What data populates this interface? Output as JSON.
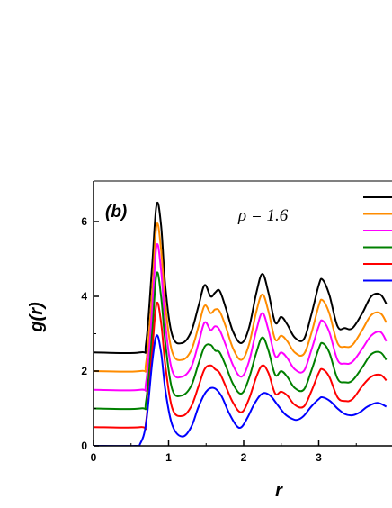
{
  "chart_data": {
    "type": "line",
    "panel_label": "(b)",
    "annotation": "ρ = 1.6",
    "xlabel": "r",
    "ylabel": "g(r)",
    "xlim": [
      0,
      3.9
    ],
    "ylim": [
      0,
      7.0
    ],
    "xticks": [
      "0",
      "1",
      "2",
      "3"
    ],
    "yticks": [
      "0",
      "2",
      "4",
      "6"
    ],
    "grid": false,
    "legend": "top-right (entries cropped)",
    "series": [
      {
        "color": "#000000",
        "offset": 2.5,
        "x": [
          0.0,
          0.62,
          0.7,
          0.78,
          0.84,
          0.9,
          0.96,
          1.05,
          1.18,
          1.3,
          1.4,
          1.48,
          1.56,
          1.62,
          1.68,
          1.76,
          1.86,
          1.97,
          2.07,
          2.17,
          2.25,
          2.33,
          2.42,
          2.5,
          2.58,
          2.68,
          2.8,
          2.9,
          3.0,
          3.05,
          3.14,
          3.25,
          3.35,
          3.45,
          3.58,
          3.7,
          3.82,
          3.9
        ],
        "y": [
          2.5,
          2.5,
          2.75,
          4.8,
          6.45,
          5.9,
          4.2,
          2.95,
          2.75,
          3.05,
          3.75,
          4.3,
          4.0,
          4.1,
          4.15,
          3.7,
          3.05,
          2.75,
          3.15,
          4.1,
          4.6,
          4.1,
          3.3,
          3.45,
          3.25,
          2.9,
          2.85,
          3.5,
          4.3,
          4.45,
          4.05,
          3.2,
          3.15,
          3.15,
          3.55,
          4.0,
          4.05,
          3.8
        ]
      },
      {
        "color": "#ff8c00",
        "offset": 2.0,
        "x": [
          0.0,
          0.62,
          0.7,
          0.78,
          0.84,
          0.9,
          0.96,
          1.05,
          1.18,
          1.3,
          1.4,
          1.48,
          1.56,
          1.62,
          1.68,
          1.76,
          1.86,
          1.97,
          2.07,
          2.17,
          2.25,
          2.33,
          2.42,
          2.5,
          2.58,
          2.68,
          2.8,
          2.9,
          3.0,
          3.05,
          3.14,
          3.25,
          3.35,
          3.45,
          3.58,
          3.7,
          3.82,
          3.9
        ],
        "y": [
          2.0,
          2.0,
          2.22,
          4.1,
          5.9,
          5.25,
          3.7,
          2.5,
          2.3,
          2.55,
          3.2,
          3.75,
          3.55,
          3.65,
          3.6,
          3.2,
          2.6,
          2.3,
          2.7,
          3.6,
          4.05,
          3.6,
          2.85,
          2.95,
          2.8,
          2.5,
          2.45,
          3.0,
          3.75,
          3.9,
          3.55,
          2.75,
          2.65,
          2.7,
          3.1,
          3.5,
          3.55,
          3.3
        ]
      },
      {
        "color": "#ff00ff",
        "offset": 1.5,
        "x": [
          0.0,
          0.62,
          0.7,
          0.78,
          0.84,
          0.9,
          0.96,
          1.05,
          1.18,
          1.3,
          1.4,
          1.48,
          1.56,
          1.62,
          1.68,
          1.76,
          1.86,
          1.97,
          2.07,
          2.17,
          2.25,
          2.33,
          2.42,
          2.5,
          2.58,
          2.68,
          2.8,
          2.9,
          3.0,
          3.05,
          3.14,
          3.25,
          3.35,
          3.45,
          3.58,
          3.7,
          3.82,
          3.9
        ],
        "y": [
          1.5,
          1.5,
          1.7,
          3.6,
          5.35,
          4.7,
          3.2,
          2.0,
          1.85,
          2.1,
          2.75,
          3.3,
          3.1,
          3.2,
          3.1,
          2.7,
          2.15,
          1.85,
          2.25,
          3.1,
          3.55,
          3.1,
          2.4,
          2.5,
          2.35,
          2.05,
          2.0,
          2.55,
          3.2,
          3.35,
          3.05,
          2.3,
          2.2,
          2.25,
          2.6,
          2.95,
          3.05,
          2.8
        ]
      },
      {
        "color": "#008000",
        "offset": 1.0,
        "x": [
          0.0,
          0.62,
          0.7,
          0.78,
          0.84,
          0.9,
          0.96,
          1.05,
          1.18,
          1.3,
          1.4,
          1.48,
          1.56,
          1.62,
          1.68,
          1.76,
          1.86,
          1.97,
          2.07,
          2.17,
          2.25,
          2.33,
          2.42,
          2.5,
          2.58,
          2.68,
          2.8,
          2.9,
          3.0,
          3.05,
          3.14,
          3.25,
          3.35,
          3.45,
          3.58,
          3.7,
          3.82,
          3.9
        ],
        "y": [
          1.0,
          1.0,
          1.2,
          3.0,
          4.6,
          4.0,
          2.7,
          1.5,
          1.35,
          1.6,
          2.2,
          2.65,
          2.7,
          2.55,
          2.5,
          2.15,
          1.65,
          1.4,
          1.8,
          2.5,
          2.9,
          2.55,
          1.9,
          2.0,
          1.85,
          1.55,
          1.5,
          2.0,
          2.6,
          2.75,
          2.5,
          1.8,
          1.7,
          1.75,
          2.1,
          2.45,
          2.5,
          2.3
        ]
      },
      {
        "color": "#ff0000",
        "offset": 0.5,
        "x": [
          0.0,
          0.62,
          0.7,
          0.78,
          0.84,
          0.9,
          0.96,
          1.05,
          1.18,
          1.3,
          1.4,
          1.48,
          1.56,
          1.62,
          1.68,
          1.76,
          1.86,
          1.97,
          2.07,
          2.17,
          2.25,
          2.33,
          2.42,
          2.5,
          2.58,
          2.68,
          2.8,
          2.9,
          3.0,
          3.05,
          3.14,
          3.25,
          3.35,
          3.45,
          3.58,
          3.7,
          3.82,
          3.9
        ],
        "y": [
          0.5,
          0.5,
          0.65,
          2.5,
          3.8,
          3.3,
          2.1,
          1.0,
          0.8,
          1.05,
          1.6,
          2.05,
          2.15,
          2.05,
          1.95,
          1.6,
          1.15,
          0.9,
          1.25,
          1.85,
          2.15,
          1.95,
          1.4,
          1.45,
          1.35,
          1.1,
          1.05,
          1.45,
          1.95,
          2.05,
          1.85,
          1.3,
          1.2,
          1.25,
          1.6,
          1.85,
          1.9,
          1.75
        ]
      },
      {
        "color": "#0000ff",
        "offset": 0.0,
        "x": [
          0.0,
          0.55,
          0.62,
          0.7,
          0.78,
          0.84,
          0.9,
          0.96,
          1.05,
          1.18,
          1.3,
          1.4,
          1.5,
          1.6,
          1.7,
          1.8,
          1.9,
          1.97,
          2.05,
          2.15,
          2.25,
          2.35,
          2.45,
          2.55,
          2.65,
          2.72,
          2.8,
          2.9,
          3.0,
          3.05,
          3.15,
          3.25,
          3.35,
          3.45,
          3.55,
          3.65,
          3.78,
          3.9
        ],
        "y": [
          0.0,
          0.0,
          0.05,
          0.6,
          2.2,
          2.95,
          2.5,
          1.45,
          0.55,
          0.25,
          0.5,
          1.05,
          1.45,
          1.55,
          1.35,
          0.9,
          0.55,
          0.5,
          0.75,
          1.15,
          1.4,
          1.35,
          1.1,
          0.85,
          0.72,
          0.7,
          0.8,
          1.05,
          1.25,
          1.3,
          1.2,
          1.0,
          0.85,
          0.82,
          0.9,
          1.05,
          1.15,
          1.05
        ]
      }
    ]
  }
}
